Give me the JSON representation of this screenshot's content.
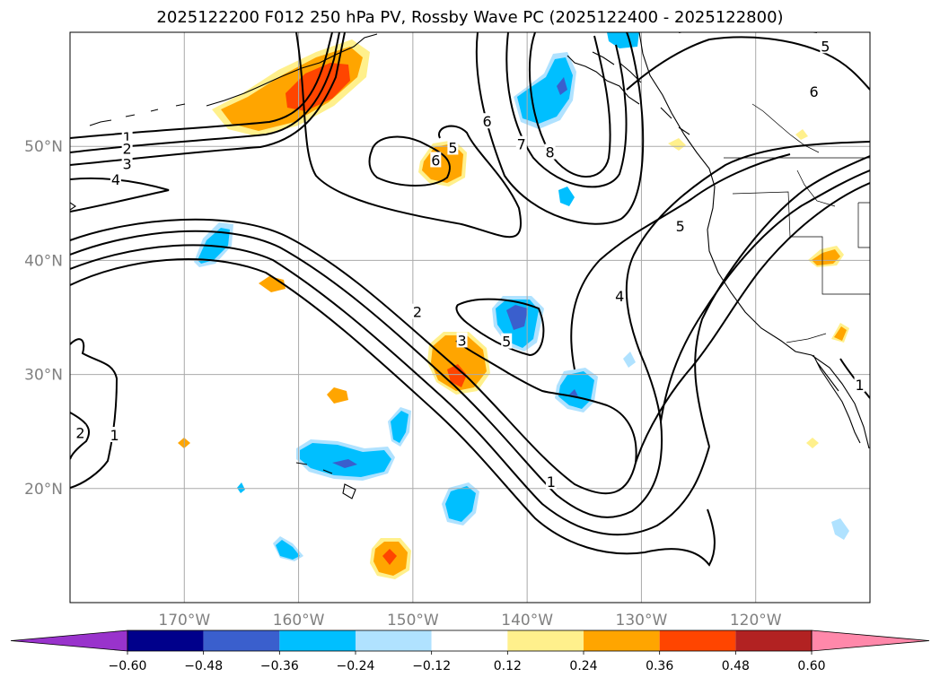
{
  "map": {
    "title": "2025122200 F012 250 hPa PV, Rossby Wave PC (2025122400 - 2025122800)",
    "lon_range": [
      -180,
      -110
    ],
    "lat_range": [
      10,
      60
    ],
    "lon_ticks": [
      {
        "value": -170,
        "label": "170°W"
      },
      {
        "value": -160,
        "label": "160°W"
      },
      {
        "value": -150,
        "label": "150°W"
      },
      {
        "value": -140,
        "label": "140°W"
      },
      {
        "value": -130,
        "label": "130°W"
      },
      {
        "value": -120,
        "label": "120°W"
      }
    ],
    "lat_ticks": [
      {
        "value": 20,
        "label": "20°N"
      },
      {
        "value": 30,
        "label": "30°N"
      },
      {
        "value": 40,
        "label": "40°N"
      },
      {
        "value": 50,
        "label": "50°N"
      }
    ],
    "grid": true,
    "pv_contour_labels": [
      {
        "text": "1",
        "lon": -175,
        "lat": 50.8
      },
      {
        "text": "2",
        "lon": -175,
        "lat": 49.8
      },
      {
        "text": "3",
        "lon": -175,
        "lat": 48.5
      },
      {
        "text": "4",
        "lon": -176,
        "lat": 47.1
      },
      {
        "text": "5",
        "lon": -146.5,
        "lat": 49.9
      },
      {
        "text": "6",
        "lon": -148,
        "lat": 48.8
      },
      {
        "text": "6",
        "lon": -143.5,
        "lat": 52.2
      },
      {
        "text": "7",
        "lon": -140.5,
        "lat": 50.2
      },
      {
        "text": "8",
        "lon": -138,
        "lat": 49.5
      },
      {
        "text": "6",
        "lon": -114.9,
        "lat": 54.8
      },
      {
        "text": "5",
        "lon": -113.9,
        "lat": 58.8
      },
      {
        "text": "5",
        "lon": -126.6,
        "lat": 43.0
      },
      {
        "text": "4",
        "lon": -131.9,
        "lat": 36.9
      },
      {
        "text": "2",
        "lon": -149.6,
        "lat": 35.5
      },
      {
        "text": "3",
        "lon": -145.7,
        "lat": 33.0
      },
      {
        "text": "5",
        "lon": -141.8,
        "lat": 32.9
      },
      {
        "text": "1",
        "lon": -137.9,
        "lat": 20.6
      },
      {
        "text": "2",
        "lon": -179.1,
        "lat": 24.9
      },
      {
        "text": "1",
        "lon": -176.1,
        "lat": 24.7
      },
      {
        "text": "1",
        "lon": -110.9,
        "lat": 29.1
      }
    ],
    "colorbar": {
      "colors": [
        "#9933cc",
        "#00008b",
        "#3a5fcd",
        "#00bfff",
        "#b0e2ff",
        "#ffffff",
        "#fff08c",
        "#ffa500",
        "#ff4500",
        "#b22222",
        "#ff88aa"
      ],
      "tick_labels": [
        "−0.60",
        "−0.48",
        "−0.36",
        "−0.24",
        "−0.12",
        "0.12",
        "0.24",
        "0.36",
        "0.48",
        "0.60"
      ]
    }
  }
}
